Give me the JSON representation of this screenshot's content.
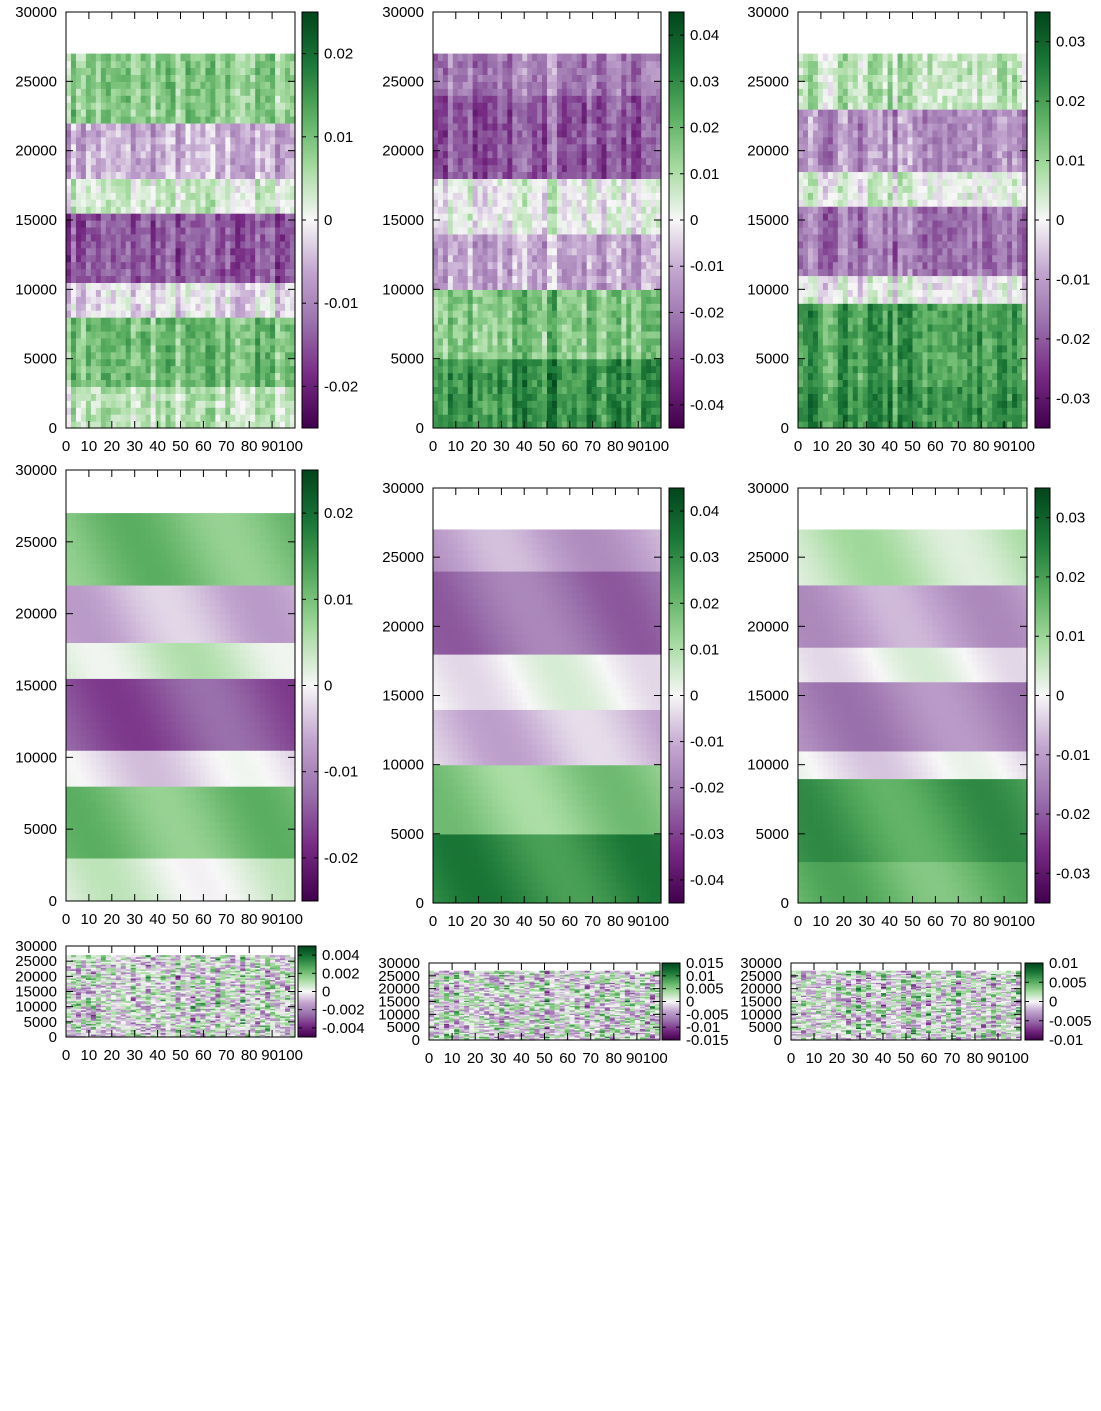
{
  "chart_data": [
    {
      "type": "heatmap",
      "pattern": "noisy-stripes",
      "xlim": [
        0,
        100
      ],
      "ylim": [
        0,
        30000
      ],
      "data_extent": {
        "x": [
          0,
          100
        ],
        "y": [
          0,
          27000
        ]
      },
      "x_ticks": [
        "0",
        "10",
        "20",
        "30",
        "40",
        "50",
        "60",
        "70",
        "80",
        "90100"
      ],
      "y_ticks": [
        "0",
        "5000",
        "10000",
        "15000",
        "20000",
        "25000",
        "30000"
      ],
      "colorbar": {
        "min": -0.025,
        "max": 0.025,
        "ticks": [
          {
            "value": 0.02,
            "label": "0.02"
          },
          {
            "value": 0.01,
            "label": "0.01"
          },
          {
            "value": 0,
            "label": "0"
          },
          {
            "value": -0.01,
            "label": "-0.01"
          },
          {
            "value": -0.02,
            "label": "-0.02"
          }
        ]
      },
      "bands": [
        {
          "y": [
            0,
            3000
          ],
          "value": 0.004
        },
        {
          "y": [
            3000,
            8000
          ],
          "value": 0.01
        },
        {
          "y": [
            8000,
            10500
          ],
          "value": -0.002
        },
        {
          "y": [
            10500,
            15500
          ],
          "value": -0.015
        },
        {
          "y": [
            15500,
            18000
          ],
          "value": 0.002
        },
        {
          "y": [
            18000,
            22000
          ],
          "value": -0.006
        },
        {
          "y": [
            22000,
            27000
          ],
          "value": 0.008
        }
      ]
    },
    {
      "type": "heatmap",
      "pattern": "noisy-stripes",
      "xlim": [
        0,
        100
      ],
      "ylim": [
        0,
        30000
      ],
      "data_extent": {
        "x": [
          0,
          100
        ],
        "y": [
          0,
          27000
        ]
      },
      "x_ticks": [
        "0",
        "10",
        "20",
        "30",
        "40",
        "50",
        "60",
        "70",
        "80",
        "90100"
      ],
      "y_ticks": [
        "0",
        "5000",
        "10000",
        "15000",
        "20000",
        "25000",
        "30000"
      ],
      "colorbar": {
        "min": -0.045,
        "max": 0.045,
        "ticks": [
          {
            "value": 0.04,
            "label": "0.04"
          },
          {
            "value": 0.03,
            "label": "0.03"
          },
          {
            "value": 0.02,
            "label": "0.02"
          },
          {
            "value": 0.01,
            "label": "0.01"
          },
          {
            "value": 0,
            "label": "0"
          },
          {
            "value": -0.01,
            "label": "-0.01"
          },
          {
            "value": -0.02,
            "label": "-0.02"
          },
          {
            "value": -0.03,
            "label": "-0.03"
          },
          {
            "value": -0.04,
            "label": "-0.04"
          }
        ]
      },
      "bands": [
        {
          "y": [
            0,
            5000
          ],
          "value": 0.03
        },
        {
          "y": [
            5000,
            10000
          ],
          "value": 0.018
        },
        {
          "y": [
            10000,
            14000
          ],
          "value": -0.01
        },
        {
          "y": [
            14000,
            18000
          ],
          "value": 0.002
        },
        {
          "y": [
            18000,
            24000
          ],
          "value": -0.025
        },
        {
          "y": [
            24000,
            27000
          ],
          "value": -0.018
        }
      ]
    },
    {
      "type": "heatmap",
      "pattern": "noisy-stripes",
      "xlim": [
        0,
        100
      ],
      "ylim": [
        0,
        30000
      ],
      "data_extent": {
        "x": [
          0,
          100
        ],
        "y": [
          0,
          27000
        ]
      },
      "x_ticks": [
        "0",
        "10",
        "20",
        "30",
        "40",
        "50",
        "60",
        "70",
        "80",
        "90100"
      ],
      "y_ticks": [
        "0",
        "5000",
        "10000",
        "15000",
        "20000",
        "25000",
        "30000"
      ],
      "colorbar": {
        "min": -0.035,
        "max": 0.035,
        "ticks": [
          {
            "value": 0.03,
            "label": "0.03"
          },
          {
            "value": 0.02,
            "label": "0.02"
          },
          {
            "value": 0.01,
            "label": "0.01"
          },
          {
            "value": 0,
            "label": "0"
          },
          {
            "value": -0.01,
            "label": "-0.01"
          },
          {
            "value": -0.02,
            "label": "-0.02"
          },
          {
            "value": -0.03,
            "label": "-0.03"
          }
        ]
      },
      "bands": [
        {
          "y": [
            0,
            3000
          ],
          "value": 0.022
        },
        {
          "y": [
            3000,
            9000
          ],
          "value": 0.02
        },
        {
          "y": [
            9000,
            11000
          ],
          "value": 0.0
        },
        {
          "y": [
            11000,
            16000
          ],
          "value": -0.016
        },
        {
          "y": [
            16000,
            18500
          ],
          "value": 0.002
        },
        {
          "y": [
            18500,
            23000
          ],
          "value": -0.012
        },
        {
          "y": [
            23000,
            27000
          ],
          "value": 0.006
        }
      ]
    },
    {
      "type": "heatmap",
      "pattern": "smooth",
      "xlim": [
        0,
        100
      ],
      "ylim": [
        0,
        30000
      ],
      "data_extent": {
        "x": [
          0,
          100
        ],
        "y": [
          0,
          27000
        ]
      },
      "x_ticks": [
        "0",
        "10",
        "20",
        "30",
        "40",
        "50",
        "60",
        "70",
        "80",
        "90100"
      ],
      "y_ticks": [
        "0",
        "5000",
        "10000",
        "15000",
        "20000",
        "25000",
        "30000"
      ],
      "colorbar": {
        "min": -0.025,
        "max": 0.025,
        "ticks": [
          {
            "value": 0.02,
            "label": "0.02"
          },
          {
            "value": 0.01,
            "label": "0.01"
          },
          {
            "value": 0,
            "label": "0"
          },
          {
            "value": -0.01,
            "label": "-0.01"
          },
          {
            "value": -0.02,
            "label": "-0.02"
          }
        ]
      },
      "bands": [
        {
          "y": [
            0,
            3000
          ],
          "value": 0.002
        },
        {
          "y": [
            3000,
            8000
          ],
          "value": 0.01
        },
        {
          "y": [
            8000,
            10500
          ],
          "value": -0.002
        },
        {
          "y": [
            10500,
            15500
          ],
          "value": -0.015
        },
        {
          "y": [
            15500,
            18000
          ],
          "value": 0.003
        },
        {
          "y": [
            18000,
            22000
          ],
          "value": -0.005
        },
        {
          "y": [
            22000,
            27000
          ],
          "value": 0.01
        }
      ]
    },
    {
      "type": "heatmap",
      "pattern": "smooth",
      "xlim": [
        0,
        100
      ],
      "ylim": [
        0,
        30000
      ],
      "data_extent": {
        "x": [
          0,
          100
        ],
        "y": [
          0,
          27000
        ]
      },
      "x_ticks": [
        "0",
        "10",
        "20",
        "30",
        "40",
        "50",
        "60",
        "70",
        "80",
        "90100"
      ],
      "y_ticks": [
        "0",
        "5000",
        "10000",
        "15000",
        "20000",
        "25000",
        "30000"
      ],
      "colorbar": {
        "min": -0.045,
        "max": 0.045,
        "ticks": [
          {
            "value": 0.04,
            "label": "0.04"
          },
          {
            "value": 0.03,
            "label": "0.03"
          },
          {
            "value": 0.02,
            "label": "0.02"
          },
          {
            "value": 0.01,
            "label": "0.01"
          },
          {
            "value": 0,
            "label": "0"
          },
          {
            "value": -0.01,
            "label": "-0.01"
          },
          {
            "value": -0.02,
            "label": "-0.02"
          },
          {
            "value": -0.03,
            "label": "-0.03"
          },
          {
            "value": -0.04,
            "label": "-0.04"
          }
        ]
      },
      "bands": [
        {
          "y": [
            0,
            5000
          ],
          "value": 0.03
        },
        {
          "y": [
            5000,
            10000
          ],
          "value": 0.015
        },
        {
          "y": [
            10000,
            14000
          ],
          "value": -0.008
        },
        {
          "y": [
            14000,
            18000
          ],
          "value": 0.0
        },
        {
          "y": [
            18000,
            24000
          ],
          "value": -0.022
        },
        {
          "y": [
            24000,
            27000
          ],
          "value": -0.012
        }
      ]
    },
    {
      "type": "heatmap",
      "pattern": "smooth",
      "xlim": [
        0,
        100
      ],
      "ylim": [
        0,
        30000
      ],
      "data_extent": {
        "x": [
          0,
          100
        ],
        "y": [
          0,
          27000
        ]
      },
      "x_ticks": [
        "0",
        "10",
        "20",
        "30",
        "40",
        "50",
        "60",
        "70",
        "80",
        "90100"
      ],
      "y_ticks": [
        "0",
        "5000",
        "10000",
        "15000",
        "20000",
        "25000",
        "30000"
      ],
      "colorbar": {
        "min": -0.035,
        "max": 0.035,
        "ticks": [
          {
            "value": 0.03,
            "label": "0.03"
          },
          {
            "value": 0.02,
            "label": "0.02"
          },
          {
            "value": 0.01,
            "label": "0.01"
          },
          {
            "value": 0,
            "label": "0"
          },
          {
            "value": -0.01,
            "label": "-0.01"
          },
          {
            "value": -0.02,
            "label": "-0.02"
          },
          {
            "value": -0.03,
            "label": "-0.03"
          }
        ]
      },
      "bands": [
        {
          "y": [
            0,
            3000
          ],
          "value": 0.016
        },
        {
          "y": [
            3000,
            9000
          ],
          "value": 0.02
        },
        {
          "y": [
            9000,
            11000
          ],
          "value": -0.002
        },
        {
          "y": [
            11000,
            16000
          ],
          "value": -0.014
        },
        {
          "y": [
            16000,
            18500
          ],
          "value": 0.0
        },
        {
          "y": [
            18500,
            23000
          ],
          "value": -0.01
        },
        {
          "y": [
            23000,
            27000
          ],
          "value": 0.006
        }
      ]
    },
    {
      "type": "heatmap",
      "pattern": "noisy-fine",
      "xlim": [
        0,
        100
      ],
      "ylim": [
        0,
        30000
      ],
      "data_extent": {
        "x": [
          0,
          100
        ],
        "y": [
          0,
          27000
        ]
      },
      "x_ticks": [
        "0",
        "10",
        "20",
        "30",
        "40",
        "50",
        "60",
        "70",
        "80",
        "90100"
      ],
      "y_ticks": [
        "0",
        "5000",
        "10000",
        "15000",
        "20000",
        "25000",
        "30000"
      ],
      "colorbar": {
        "min": -0.005,
        "max": 0.005,
        "ticks": [
          {
            "value": 0.004,
            "label": "0.004"
          },
          {
            "value": 0.002,
            "label": "0.002"
          },
          {
            "value": 0,
            "label": "0"
          },
          {
            "value": -0.002,
            "label": "-0.002"
          },
          {
            "value": -0.004,
            "label": "-0.004"
          }
        ]
      },
      "bands": [
        {
          "y": [
            0,
            27000
          ],
          "value": 0.0
        }
      ]
    },
    {
      "type": "heatmap",
      "pattern": "noisy-fine",
      "xlim": [
        0,
        100
      ],
      "ylim": [
        0,
        30000
      ],
      "data_extent": {
        "x": [
          0,
          100
        ],
        "y": [
          0,
          27000
        ]
      },
      "x_ticks": [
        "0",
        "10",
        "20",
        "30",
        "40",
        "50",
        "60",
        "70",
        "80",
        "90100"
      ],
      "y_ticks": [
        "0",
        "5000",
        "10000",
        "15000",
        "20000",
        "25000",
        "30000"
      ],
      "colorbar": {
        "min": -0.015,
        "max": 0.015,
        "ticks": [
          {
            "value": 0.015,
            "label": "0.015"
          },
          {
            "value": 0.01,
            "label": "0.01"
          },
          {
            "value": 0.005,
            "label": "0.005"
          },
          {
            "value": 0,
            "label": "0"
          },
          {
            "value": -0.005,
            "label": "-0.005"
          },
          {
            "value": -0.01,
            "label": "-0.01"
          },
          {
            "value": -0.015,
            "label": "-0.015"
          }
        ]
      },
      "bands": [
        {
          "y": [
            0,
            27000
          ],
          "value": 0.0
        }
      ]
    },
    {
      "type": "heatmap",
      "pattern": "noisy-fine",
      "xlim": [
        0,
        100
      ],
      "ylim": [
        0,
        30000
      ],
      "data_extent": {
        "x": [
          0,
          100
        ],
        "y": [
          0,
          27000
        ]
      },
      "x_ticks": [
        "0",
        "10",
        "20",
        "30",
        "40",
        "50",
        "60",
        "70",
        "80",
        "90100"
      ],
      "y_ticks": [
        "0",
        "5000",
        "10000",
        "15000",
        "20000",
        "25000",
        "30000"
      ],
      "colorbar": {
        "min": -0.01,
        "max": 0.01,
        "ticks": [
          {
            "value": 0.01,
            "label": "0.01"
          },
          {
            "value": 0.005,
            "label": "0.005"
          },
          {
            "value": 0,
            "label": "0"
          },
          {
            "value": -0.005,
            "label": "-0.005"
          },
          {
            "value": -0.01,
            "label": "-0.01"
          }
        ]
      },
      "bands": [
        {
          "y": [
            0,
            27000
          ],
          "value": 0.0
        }
      ]
    }
  ]
}
